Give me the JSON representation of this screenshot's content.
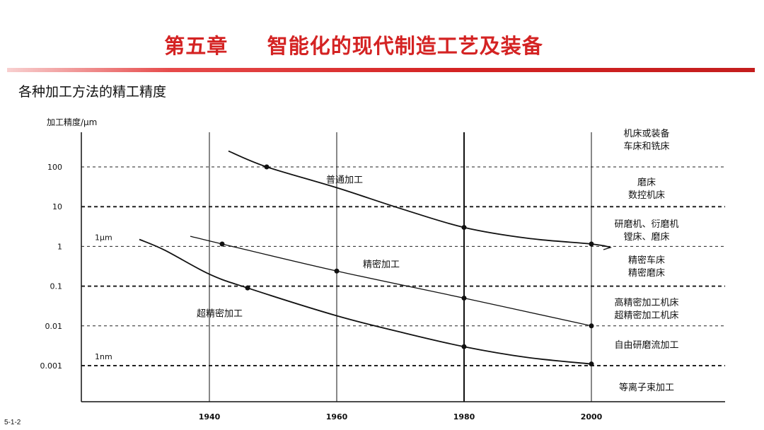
{
  "header": {
    "chapter": "第五章",
    "title": "智能化的现代制造工艺及装备"
  },
  "subtitle": "各种加工方法的精工精度",
  "slide_number": "5-1-2",
  "colors": {
    "accent": "#d42323"
  },
  "chart_data": {
    "type": "line",
    "title": "",
    "ylabel": "加工精度/μm",
    "xlabel": "",
    "y_scale": "log",
    "ylim": [
      0.001,
      100
    ],
    "xlim": [
      1920,
      2000
    ],
    "x_ticks": [
      "1940",
      "1960",
      "1980",
      "2000"
    ],
    "y_ticks": [
      "100",
      "10",
      "1",
      "0.1",
      "0.01",
      "0.001"
    ],
    "y_tick_values": [
      100,
      10,
      1,
      0.1,
      0.01,
      0.001
    ],
    "x_tick_values": [
      1940,
      1960,
      1980,
      2000
    ],
    "grid": "horizontal dashed at each decade, vertical solid at tick years",
    "side_markers": [
      {
        "label": "1μm",
        "y": 1
      },
      {
        "label": "1nm",
        "y": 0.001
      }
    ],
    "series": [
      {
        "name": "普通加工",
        "points": [
          [
            1943,
            250
          ],
          [
            1949,
            100
          ],
          [
            1960,
            30
          ],
          [
            1970,
            9
          ],
          [
            1980,
            3
          ],
          [
            1990,
            1.6
          ],
          [
            2000,
            1.15
          ],
          [
            2003,
            0.95
          ]
        ],
        "markers": [
          [
            1949,
            100
          ],
          [
            1980,
            3
          ],
          [
            2000,
            1.15
          ]
        ]
      },
      {
        "name": "精密加工",
        "points": [
          [
            1937,
            1.8
          ],
          [
            1942,
            1.15
          ],
          [
            1960,
            0.24
          ],
          [
            1980,
            0.05
          ],
          [
            2000,
            0.01
          ]
        ],
        "markers": [
          [
            1942,
            1.15
          ],
          [
            1960,
            0.24
          ],
          [
            1980,
            0.05
          ],
          [
            2000,
            0.01
          ]
        ]
      },
      {
        "name": "超精密加工",
        "points": [
          [
            1929,
            1.5
          ],
          [
            1933,
            0.8
          ],
          [
            1940,
            0.2
          ],
          [
            1946,
            0.09
          ],
          [
            1960,
            0.018
          ],
          [
            1970,
            0.007
          ],
          [
            1980,
            0.003
          ],
          [
            1990,
            0.0016
          ],
          [
            2000,
            0.0011
          ]
        ],
        "markers": [
          [
            1946,
            0.09
          ],
          [
            1980,
            0.003
          ],
          [
            2000,
            0.0011
          ]
        ]
      }
    ],
    "right_labels": [
      [
        "机床或装备",
        "车床和铣床"
      ],
      [
        "磨床",
        "数控机床"
      ],
      [
        "研磨机、衍磨机",
        "镗床、磨床"
      ],
      [
        "精密车床",
        "精密磨床"
      ],
      [
        "高精密加工机床",
        "超精密加工机床"
      ],
      [
        "自由研磨流加工"
      ],
      [
        "等离子束加工"
      ]
    ]
  }
}
